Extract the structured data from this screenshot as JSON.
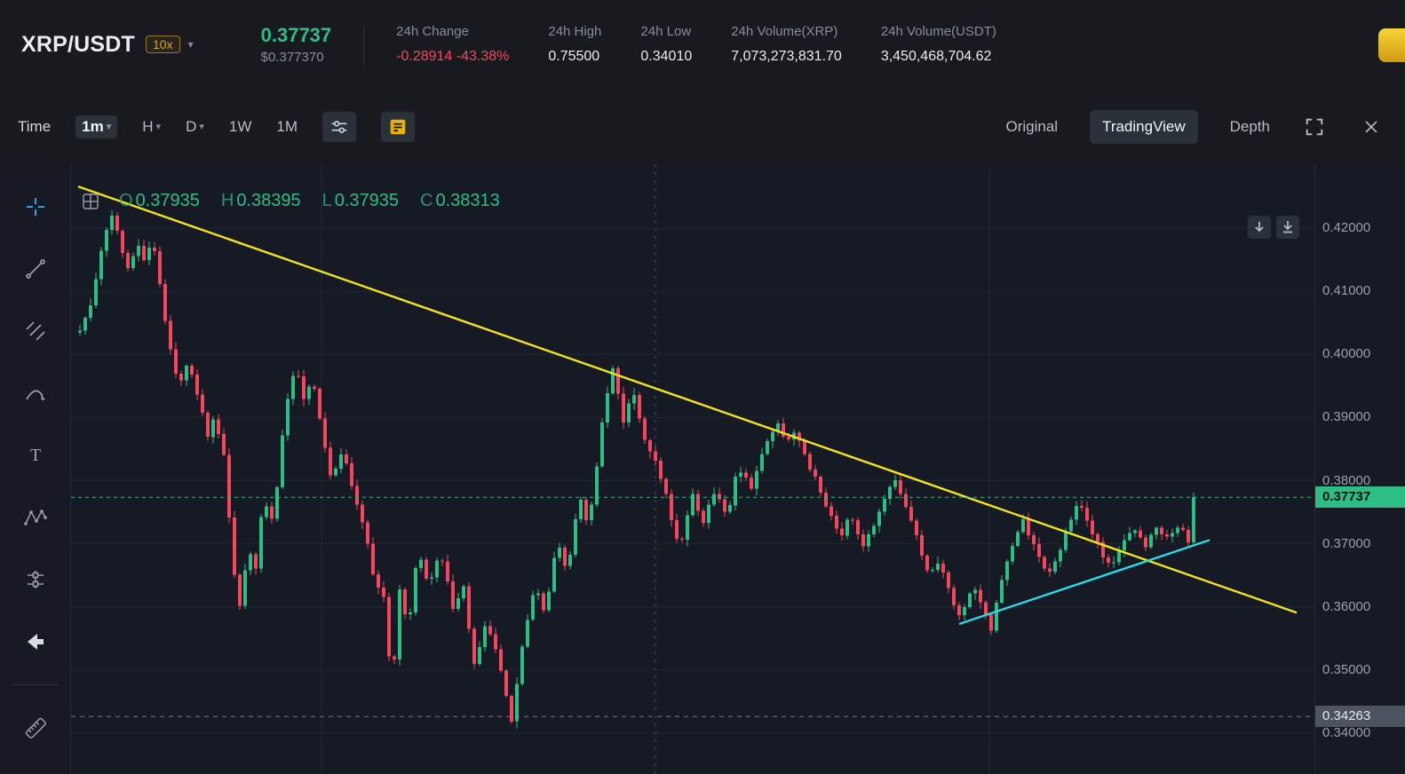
{
  "icons": {
    "caret_glyph": "▾",
    "close_glyph": "✕",
    "left_rail": [
      "crosshair-icon",
      "trendline-icon",
      "parallel-channel-icon",
      "curve-pencil-icon",
      "text-tool-icon",
      "xabcd-pattern-icon",
      "forecast-tool-icon",
      "back-arrow-icon",
      "ruler-icon"
    ],
    "toolbar": [
      "indicator-settings-icon",
      "indicator-list-icon",
      "fullscreen-icon",
      "close-icon"
    ],
    "chart": [
      "grid-legend-icon",
      "arrow-down-icon",
      "arrow-down-bar-icon"
    ]
  },
  "header": {
    "symbol": "XRP/USDT",
    "leverage_badge": "10x",
    "last_price": "0.37737",
    "last_price_usd": "$0.377370",
    "stats": [
      {
        "label": "24h Change",
        "value": "-0.28914 -43.38%",
        "color": "red"
      },
      {
        "label": "24h High",
        "value": "0.75500"
      },
      {
        "label": "24h Low",
        "value": "0.34010"
      },
      {
        "label": "24h Volume(XRP)",
        "value": "7,073,273,831.70"
      },
      {
        "label": "24h Volume(USDT)",
        "value": "3,450,468,704.62"
      }
    ]
  },
  "toolbar": {
    "time_label": "Time",
    "intervals": [
      {
        "label": "1m",
        "selected": true,
        "caret": true
      },
      {
        "label": "H",
        "caret": true
      },
      {
        "label": "D",
        "caret": true
      },
      {
        "label": "1W"
      },
      {
        "label": "1M"
      }
    ],
    "view_modes": [
      {
        "label": "Original"
      },
      {
        "label": "TradingView",
        "selected": true
      },
      {
        "label": "Depth"
      }
    ]
  },
  "legend": {
    "items": [
      {
        "label": "O",
        "value": "0.37935"
      },
      {
        "label": "H",
        "value": "0.38395"
      },
      {
        "label": "L",
        "value": "0.37935"
      },
      {
        "label": "C",
        "value": "0.38313"
      }
    ]
  },
  "chart_data": {
    "type": "candlestick",
    "symbol": "XRP/USDT",
    "interval": "1m",
    "ylim": [
      0.34,
      0.42
    ],
    "y_ticks": [
      "0.42000",
      "0.41000",
      "0.40000",
      "0.39000",
      "0.38000",
      "0.37000",
      "0.36000",
      "0.35000",
      "0.34000"
    ],
    "current_price": 0.37737,
    "current_price_label": "0.37737",
    "level_price": 0.34263,
    "level_price_label": "0.34263",
    "candle_count": 210,
    "colors": {
      "up": "#2ebd85",
      "down": "#f6465d",
      "trend_yellow": "#f2e41e",
      "trend_cyan": "#2ad9e5"
    },
    "trendlines": [
      {
        "name": "descending-resistance",
        "color": "#f2e41e",
        "x1": 0.006,
        "p1": 0.4266,
        "x2": 0.986,
        "p2": 0.3591
      },
      {
        "name": "ascending-support",
        "color": "#2ad9e5",
        "x1": 0.714,
        "p1": 0.3573,
        "x2": 0.916,
        "p2": 0.3706
      }
    ],
    "price_path": [
      [
        0,
        0.4035
      ],
      [
        0.01,
        0.408
      ],
      [
        0.02,
        0.417
      ],
      [
        0.029,
        0.4225
      ],
      [
        0.037,
        0.4165
      ],
      [
        0.045,
        0.4125
      ],
      [
        0.051,
        0.4185
      ],
      [
        0.059,
        0.4145
      ],
      [
        0.065,
        0.4185
      ],
      [
        0.073,
        0.41
      ],
      [
        0.081,
        0.4005
      ],
      [
        0.089,
        0.3955
      ],
      [
        0.097,
        0.3985
      ],
      [
        0.107,
        0.3925
      ],
      [
        0.115,
        0.387
      ],
      [
        0.121,
        0.39
      ],
      [
        0.13,
        0.383
      ],
      [
        0.138,
        0.3655
      ],
      [
        0.145,
        0.359
      ],
      [
        0.151,
        0.3705
      ],
      [
        0.157,
        0.364
      ],
      [
        0.165,
        0.378
      ],
      [
        0.173,
        0.373
      ],
      [
        0.183,
        0.389
      ],
      [
        0.193,
        0.3985
      ],
      [
        0.201,
        0.393
      ],
      [
        0.209,
        0.3965
      ],
      [
        0.217,
        0.388
      ],
      [
        0.226,
        0.3795
      ],
      [
        0.236,
        0.3845
      ],
      [
        0.245,
        0.379
      ],
      [
        0.255,
        0.3725
      ],
      [
        0.264,
        0.3645
      ],
      [
        0.274,
        0.361
      ],
      [
        0.28,
        0.3465
      ],
      [
        0.287,
        0.3625
      ],
      [
        0.295,
        0.357
      ],
      [
        0.304,
        0.3695
      ],
      [
        0.313,
        0.3635
      ],
      [
        0.324,
        0.3685
      ],
      [
        0.336,
        0.359
      ],
      [
        0.344,
        0.3635
      ],
      [
        0.354,
        0.351
      ],
      [
        0.364,
        0.3575
      ],
      [
        0.375,
        0.3525
      ],
      [
        0.387,
        0.3415
      ],
      [
        0.399,
        0.3555
      ],
      [
        0.408,
        0.3635
      ],
      [
        0.418,
        0.3585
      ],
      [
        0.428,
        0.3705
      ],
      [
        0.438,
        0.3655
      ],
      [
        0.448,
        0.3775
      ],
      [
        0.457,
        0.3725
      ],
      [
        0.469,
        0.3895
      ],
      [
        0.479,
        0.398
      ],
      [
        0.488,
        0.3895
      ],
      [
        0.497,
        0.3945
      ],
      [
        0.508,
        0.3855
      ],
      [
        0.519,
        0.3825
      ],
      [
        0.529,
        0.3755
      ],
      [
        0.539,
        0.3695
      ],
      [
        0.55,
        0.3775
      ],
      [
        0.559,
        0.3735
      ],
      [
        0.571,
        0.3785
      ],
      [
        0.582,
        0.3745
      ],
      [
        0.591,
        0.3825
      ],
      [
        0.603,
        0.3785
      ],
      [
        0.613,
        0.3845
      ],
      [
        0.625,
        0.3895
      ],
      [
        0.635,
        0.3855
      ],
      [
        0.643,
        0.3885
      ],
      [
        0.653,
        0.3825
      ],
      [
        0.663,
        0.3795
      ],
      [
        0.672,
        0.3755
      ],
      [
        0.683,
        0.3715
      ],
      [
        0.693,
        0.3745
      ],
      [
        0.702,
        0.3695
      ],
      [
        0.712,
        0.3725
      ],
      [
        0.722,
        0.3775
      ],
      [
        0.733,
        0.3805
      ],
      [
        0.742,
        0.3755
      ],
      [
        0.752,
        0.3705
      ],
      [
        0.762,
        0.3645
      ],
      [
        0.772,
        0.3675
      ],
      [
        0.782,
        0.3615
      ],
      [
        0.792,
        0.3585
      ],
      [
        0.802,
        0.3635
      ],
      [
        0.81,
        0.3605
      ],
      [
        0.818,
        0.3565
      ],
      [
        0.828,
        0.3645
      ],
      [
        0.838,
        0.3695
      ],
      [
        0.847,
        0.3735
      ],
      [
        0.858,
        0.3695
      ],
      [
        0.868,
        0.3655
      ],
      [
        0.878,
        0.3675
      ],
      [
        0.887,
        0.3725
      ],
      [
        0.897,
        0.3765
      ],
      [
        0.908,
        0.3725
      ],
      [
        0.917,
        0.3685
      ],
      [
        0.927,
        0.3665
      ],
      [
        0.937,
        0.3705
      ],
      [
        0.948,
        0.3725
      ],
      [
        0.957,
        0.3695
      ],
      [
        0.967,
        0.3725
      ],
      [
        0.977,
        0.3705
      ],
      [
        0.987,
        0.373
      ],
      [
        0.996,
        0.37
      ],
      [
        1,
        0.37737
      ]
    ]
  }
}
